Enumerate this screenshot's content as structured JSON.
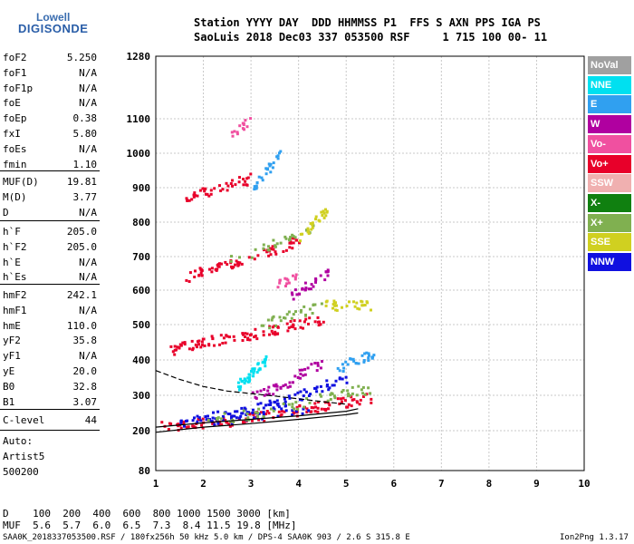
{
  "header": {
    "logo_top": "Lowell",
    "logo_bottom": "DIGISONDE",
    "line1": "Station YYYY DAY  DDD HHMMSS P1  FFS S AXN PPS IGA PS",
    "line2": "SaoLuis 2018 Dec03 337 053500 RSF     1 715 100 00- 11"
  },
  "params_group1": [
    {
      "name": "foF2",
      "value": "5.250"
    },
    {
      "name": "foF1",
      "value": "N/A"
    },
    {
      "name": "foF1p",
      "value": "N/A"
    },
    {
      "name": "foE",
      "value": "N/A"
    },
    {
      "name": "foEp",
      "value": "0.38"
    },
    {
      "name": "fxI",
      "value": "5.80"
    },
    {
      "name": "foEs",
      "value": "N/A"
    },
    {
      "name": "fmin",
      "value": "1.10"
    }
  ],
  "params_group2": [
    {
      "name": "MUF(D)",
      "value": "19.81"
    },
    {
      "name": "M(D)",
      "value": "3.77"
    },
    {
      "name": "D",
      "value": "N/A"
    }
  ],
  "params_group3": [
    {
      "name": "h`F",
      "value": "205.0"
    },
    {
      "name": "h`F2",
      "value": "205.0"
    },
    {
      "name": "h`E",
      "value": "N/A"
    },
    {
      "name": "h`Es",
      "value": "N/A"
    }
  ],
  "params_group4": [
    {
      "name": "hmF2",
      "value": "242.1"
    },
    {
      "name": "hmF1",
      "value": "N/A"
    },
    {
      "name": "hmE",
      "value": "110.0"
    },
    {
      "name": "yF2",
      "value": "35.8"
    },
    {
      "name": "yF1",
      "value": "N/A"
    },
    {
      "name": "yE",
      "value": "20.0"
    },
    {
      "name": "B0",
      "value": "32.8"
    },
    {
      "name": "B1",
      "value": "3.07"
    }
  ],
  "params_group5": [
    {
      "name": "C-level",
      "value": "44"
    }
  ],
  "auto_notes": [
    "Auto:",
    "Artist5",
    "500200"
  ],
  "footer": {
    "d_row": "D    100  200  400  600  800 1000 1500 3000 [km]",
    "muf_row": "MUF  5.6  5.7  6.0  6.5  7.3  8.4 11.5 19.8 [MHz]",
    "file_line": "SAA0K_2018337053500.RSF / 180fx256h 50 kHz 5.0 km / DPS-4 SAA0K 903 / 2.6 S 315.8 E",
    "version": "Ion2Png 1.3.17"
  },
  "legend": [
    {
      "label": "NoVal",
      "color": "#a0a0a0"
    },
    {
      "label": "NNE",
      "color": "#00e0f0"
    },
    {
      "label": "E",
      "color": "#30a0f0"
    },
    {
      "label": "W",
      "color": "#b000a0"
    },
    {
      "label": "Vo-",
      "color": "#f050a0"
    },
    {
      "label": "Vo+",
      "color": "#e8002a"
    },
    {
      "label": "SSW",
      "color": "#f0b0b0"
    },
    {
      "label": "X-",
      "color": "#108010"
    },
    {
      "label": "X+",
      "color": "#80b050"
    },
    {
      "label": "SSE",
      "color": "#d0d020"
    },
    {
      "label": "NNW",
      "color": "#1010e0"
    }
  ],
  "chart_data": {
    "type": "scatter",
    "xlim": [
      1,
      10
    ],
    "ylim": [
      80,
      1280
    ],
    "x_ticks": [
      1,
      2,
      3,
      4,
      5,
      6,
      7,
      8,
      9,
      10
    ],
    "y_ticks": [
      80,
      200,
      300,
      400,
      500,
      600,
      700,
      800,
      900,
      1000,
      1100,
      1280
    ],
    "grid": true,
    "y_scale": "nonlinear",
    "legend_position": "right",
    "series": [
      {
        "name": "Vo+",
        "color": "#e8002a",
        "traces": [
          [
            [
              1.1,
              215
            ],
            [
              1.6,
              220
            ],
            [
              2.0,
              225
            ],
            [
              2.5,
              230
            ],
            [
              3.0,
              240
            ],
            [
              3.5,
              250
            ],
            [
              4.0,
              260
            ],
            [
              4.5,
              275
            ],
            [
              5.0,
              285
            ],
            [
              5.5,
              295
            ]
          ],
          [
            [
              1.2,
              425
            ],
            [
              1.6,
              440
            ],
            [
              2.0,
              455
            ],
            [
              2.5,
              465
            ],
            [
              3.0,
              475
            ],
            [
              3.5,
              490
            ],
            [
              4.0,
              505
            ],
            [
              4.5,
              520
            ]
          ],
          [
            [
              1.6,
              640
            ],
            [
              2.0,
              660
            ],
            [
              2.5,
              680
            ],
            [
              3.0,
              700
            ],
            [
              3.5,
              725
            ],
            [
              4.0,
              750
            ]
          ],
          [
            [
              1.6,
              870
            ],
            [
              2.0,
              890
            ],
            [
              2.5,
              910
            ],
            [
              3.0,
              930
            ]
          ]
        ]
      },
      {
        "name": "NNW",
        "color": "#1010e0",
        "traces": [
          [
            [
              1.8,
              240
            ],
            [
              2.5,
              250
            ],
            [
              3.0,
              260
            ],
            [
              3.5,
              280
            ],
            [
              4.0,
              300
            ],
            [
              4.5,
              330
            ],
            [
              5.0,
              350
            ]
          ],
          [
            [
              1.5,
              230
            ],
            [
              2.2,
              235
            ],
            [
              3.2,
              245
            ],
            [
              4.2,
              270
            ]
          ]
        ]
      },
      {
        "name": "X+",
        "color": "#80b050",
        "traces": [
          [
            [
              2.0,
              230
            ],
            [
              3.0,
              250
            ],
            [
              4.0,
              280
            ],
            [
              5.0,
              310
            ],
            [
              5.5,
              320
            ]
          ],
          [
            [
              3.2,
              500
            ],
            [
              3.8,
              530
            ],
            [
              4.5,
              560
            ]
          ],
          [
            [
              2.5,
              690
            ],
            [
              3.5,
              740
            ],
            [
              4.3,
              790
            ]
          ]
        ]
      },
      {
        "name": "SSE",
        "color": "#d0d020",
        "traces": [
          [
            [
              4.5,
              560
            ],
            [
              5.0,
              560
            ],
            [
              5.5,
              555
            ]
          ],
          [
            [
              4.0,
              760
            ],
            [
              4.3,
              800
            ],
            [
              4.6,
              840
            ]
          ]
        ]
      },
      {
        "name": "W",
        "color": "#b000a0",
        "traces": [
          [
            [
              3.0,
              300
            ],
            [
              3.5,
              320
            ],
            [
              4.0,
              360
            ],
            [
              4.5,
              400
            ]
          ],
          [
            [
              3.8,
              580
            ],
            [
              4.2,
              620
            ],
            [
              4.6,
              650
            ]
          ]
        ]
      },
      {
        "name": "NNE",
        "color": "#00e0f0",
        "traces": [
          [
            [
              2.7,
              330
            ],
            [
              2.9,
              350
            ],
            [
              3.1,
              380
            ],
            [
              3.3,
              400
            ]
          ]
        ]
      },
      {
        "name": "E",
        "color": "#30a0f0",
        "traces": [
          [
            [
              3.0,
              900
            ],
            [
              3.3,
              950
            ],
            [
              3.6,
              1000
            ]
          ],
          [
            [
              4.8,
              380
            ],
            [
              5.2,
              400
            ],
            [
              5.6,
              420
            ]
          ]
        ]
      },
      {
        "name": "Vo-",
        "color": "#f050a0",
        "traces": [
          [
            [
              2.5,
              1050
            ],
            [
              3.0,
              1100
            ]
          ],
          [
            [
              3.5,
              620
            ],
            [
              4.0,
              640
            ]
          ]
        ]
      }
    ],
    "profile_lines": [
      {
        "style": "solid",
        "points": [
          [
            1.0,
            195
          ],
          [
            2.0,
            210
          ],
          [
            3.0,
            220
          ],
          [
            4.0,
            232
          ],
          [
            5.0,
            245
          ],
          [
            5.25,
            250
          ]
        ]
      },
      {
        "style": "solid",
        "points": [
          [
            1.0,
            210
          ],
          [
            2.0,
            222
          ],
          [
            3.0,
            232
          ],
          [
            4.0,
            242
          ],
          [
            5.0,
            255
          ],
          [
            5.25,
            262
          ]
        ]
      },
      {
        "style": "dashed",
        "points": [
          [
            1.0,
            370
          ],
          [
            1.5,
            345
          ],
          [
            2.0,
            325
          ],
          [
            2.5,
            312
          ],
          [
            3.0,
            305
          ],
          [
            3.5,
            298
          ],
          [
            4.0,
            290
          ],
          [
            4.5,
            282
          ],
          [
            5.0,
            275
          ]
        ]
      }
    ]
  }
}
